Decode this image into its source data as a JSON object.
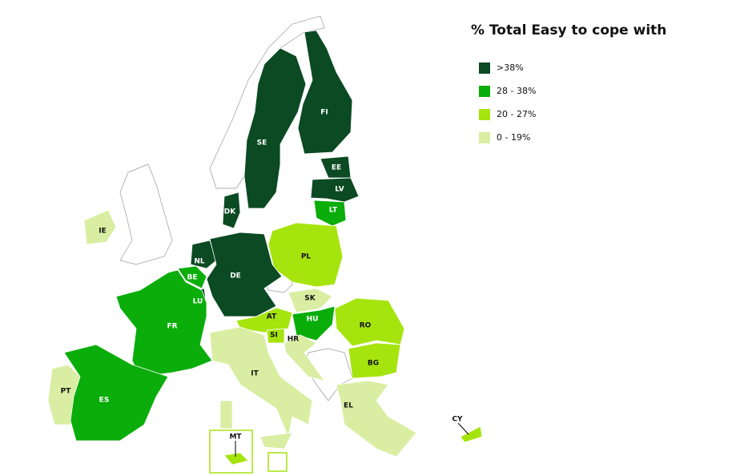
{
  "title": "% Total Easy to cope with",
  "legend": [
    {
      "label": ">38%",
      "color": "#0b4a23"
    },
    {
      "label": "28 - 38%",
      "color": "#0aad0a"
    },
    {
      "label": "20 - 27%",
      "color": "#a6e40d"
    },
    {
      "label": "0 - 19%",
      "color": "#d9eea2"
    }
  ],
  "countries": [
    {
      "code": "FI",
      "color": "#0b4a23"
    },
    {
      "code": "SE",
      "color": "#0b4a23"
    },
    {
      "code": "EE",
      "color": "#0b4a23"
    },
    {
      "code": "LV",
      "color": "#0b4a23"
    },
    {
      "code": "LT",
      "color": "#0aad0a"
    },
    {
      "code": "DK",
      "color": "#0b4a23"
    },
    {
      "code": "IE",
      "color": "#d9eea2"
    },
    {
      "code": "PL",
      "color": "#a6e40d"
    },
    {
      "code": "NL",
      "color": "#0b4a23"
    },
    {
      "code": "DE",
      "color": "#0b4a23"
    },
    {
      "code": "BE",
      "color": "#0aad0a"
    },
    {
      "code": "LU",
      "color": "#0b4a23"
    },
    {
      "code": "FR",
      "color": "#0aad0a"
    },
    {
      "code": "SK",
      "color": "#d9eea2"
    },
    {
      "code": "AT",
      "color": "#a6e40d"
    },
    {
      "code": "HU",
      "color": "#0aad0a"
    },
    {
      "code": "RO",
      "color": "#a6e40d"
    },
    {
      "code": "SI",
      "color": "#a6e40d"
    },
    {
      "code": "HR",
      "color": "#d9eea2"
    },
    {
      "code": "IT",
      "color": "#d9eea2"
    },
    {
      "code": "BG",
      "color": "#a6e40d"
    },
    {
      "code": "PT",
      "color": "#d9eea2"
    },
    {
      "code": "ES",
      "color": "#0aad0a"
    },
    {
      "code": "EL",
      "color": "#d9eea2"
    },
    {
      "code": "MT",
      "color": "#a6e40d"
    },
    {
      "code": "CY",
      "color": "#a6e40d"
    }
  ]
}
